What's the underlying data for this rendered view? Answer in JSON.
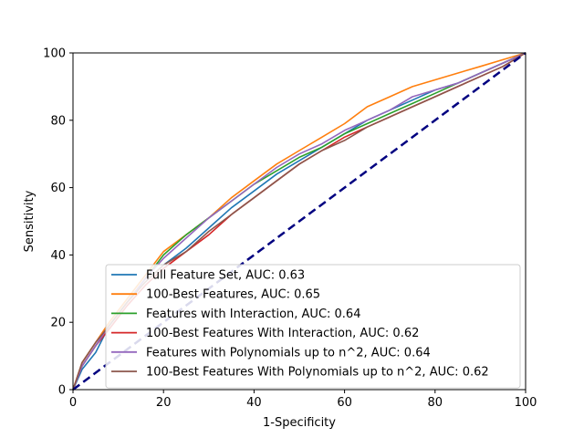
{
  "chart_data": {
    "type": "line",
    "title": "",
    "xlabel": "1-Specificity",
    "ylabel": "Sensitivity",
    "xlim": [
      0,
      100
    ],
    "ylim": [
      0,
      100
    ],
    "xticks": [
      0,
      20,
      40,
      60,
      80,
      100
    ],
    "yticks": [
      0,
      20,
      40,
      60,
      80,
      100
    ],
    "grid": false,
    "legend_position": "lower-right",
    "baseline": {
      "x": [
        0,
        100
      ],
      "y": [
        0,
        100
      ],
      "color": "#000080",
      "style": "dashed"
    },
    "series": [
      {
        "name": "Full Feature Set, AUC: 0.63",
        "color": "#1f77b4",
        "x": [
          0,
          2,
          5,
          8,
          12,
          16,
          20,
          25,
          30,
          35,
          40,
          45,
          50,
          55,
          60,
          65,
          70,
          75,
          80,
          85,
          90,
          95,
          100
        ],
        "y": [
          0,
          6,
          11,
          19,
          26,
          32,
          37,
          42,
          48,
          54,
          59,
          64,
          68,
          72,
          76,
          80,
          83,
          86,
          89,
          91,
          94,
          97,
          100
        ]
      },
      {
        "name": "100-Best Features, AUC: 0.65",
        "color": "#ff7f0e",
        "x": [
          0,
          2,
          5,
          8,
          12,
          16,
          20,
          25,
          30,
          35,
          40,
          45,
          50,
          55,
          60,
          65,
          70,
          75,
          80,
          85,
          90,
          95,
          100
        ],
        "y": [
          0,
          8,
          14,
          20,
          27,
          34,
          41,
          46,
          51,
          57,
          62,
          67,
          71,
          75,
          79,
          84,
          87,
          90,
          92,
          94,
          96,
          98,
          100
        ]
      },
      {
        "name": "Features with Interaction, AUC: 0.64",
        "color": "#2ca02c",
        "x": [
          0,
          2,
          5,
          8,
          12,
          16,
          20,
          25,
          30,
          35,
          40,
          45,
          50,
          55,
          60,
          65,
          70,
          75,
          80,
          85,
          90,
          95,
          100
        ],
        "y": [
          0,
          7,
          13,
          19,
          26,
          33,
          40,
          46,
          51,
          56,
          61,
          65,
          69,
          72,
          76,
          79,
          82,
          85,
          88,
          91,
          94,
          97,
          100
        ]
      },
      {
        "name": "100-Best Features With Interaction, AUC: 0.62",
        "color": "#d62728",
        "x": [
          0,
          2,
          5,
          8,
          12,
          16,
          20,
          25,
          30,
          35,
          40,
          45,
          50,
          55,
          60,
          65,
          70,
          75,
          80,
          85,
          90,
          95,
          100
        ],
        "y": [
          0,
          7,
          13,
          18,
          25,
          31,
          36,
          41,
          46,
          52,
          57,
          62,
          67,
          71,
          75,
          78,
          81,
          84,
          87,
          90,
          93,
          96,
          100
        ]
      },
      {
        "name": "Features with Polynomials up to n^2, AUC: 0.64",
        "color": "#9467bd",
        "x": [
          0,
          2,
          5,
          8,
          12,
          16,
          20,
          25,
          30,
          35,
          40,
          45,
          50,
          55,
          60,
          65,
          70,
          75,
          80,
          85,
          90,
          95,
          100
        ],
        "y": [
          0,
          7,
          13,
          19,
          26,
          33,
          39,
          45,
          51,
          56,
          61,
          66,
          70,
          73,
          77,
          80,
          83,
          87,
          89,
          91,
          94,
          97,
          100
        ]
      },
      {
        "name": "100-Best Features With Polynomials up to n^2, AUC: 0.62",
        "color": "#8c564b",
        "x": [
          0,
          2,
          5,
          8,
          12,
          16,
          20,
          25,
          30,
          35,
          40,
          45,
          50,
          55,
          60,
          65,
          70,
          75,
          80,
          85,
          90,
          95,
          100
        ],
        "y": [
          0,
          8,
          14,
          19,
          26,
          32,
          37,
          41,
          47,
          52,
          57,
          62,
          67,
          71,
          74,
          78,
          81,
          84,
          87,
          90,
          93,
          96,
          100
        ]
      }
    ]
  }
}
